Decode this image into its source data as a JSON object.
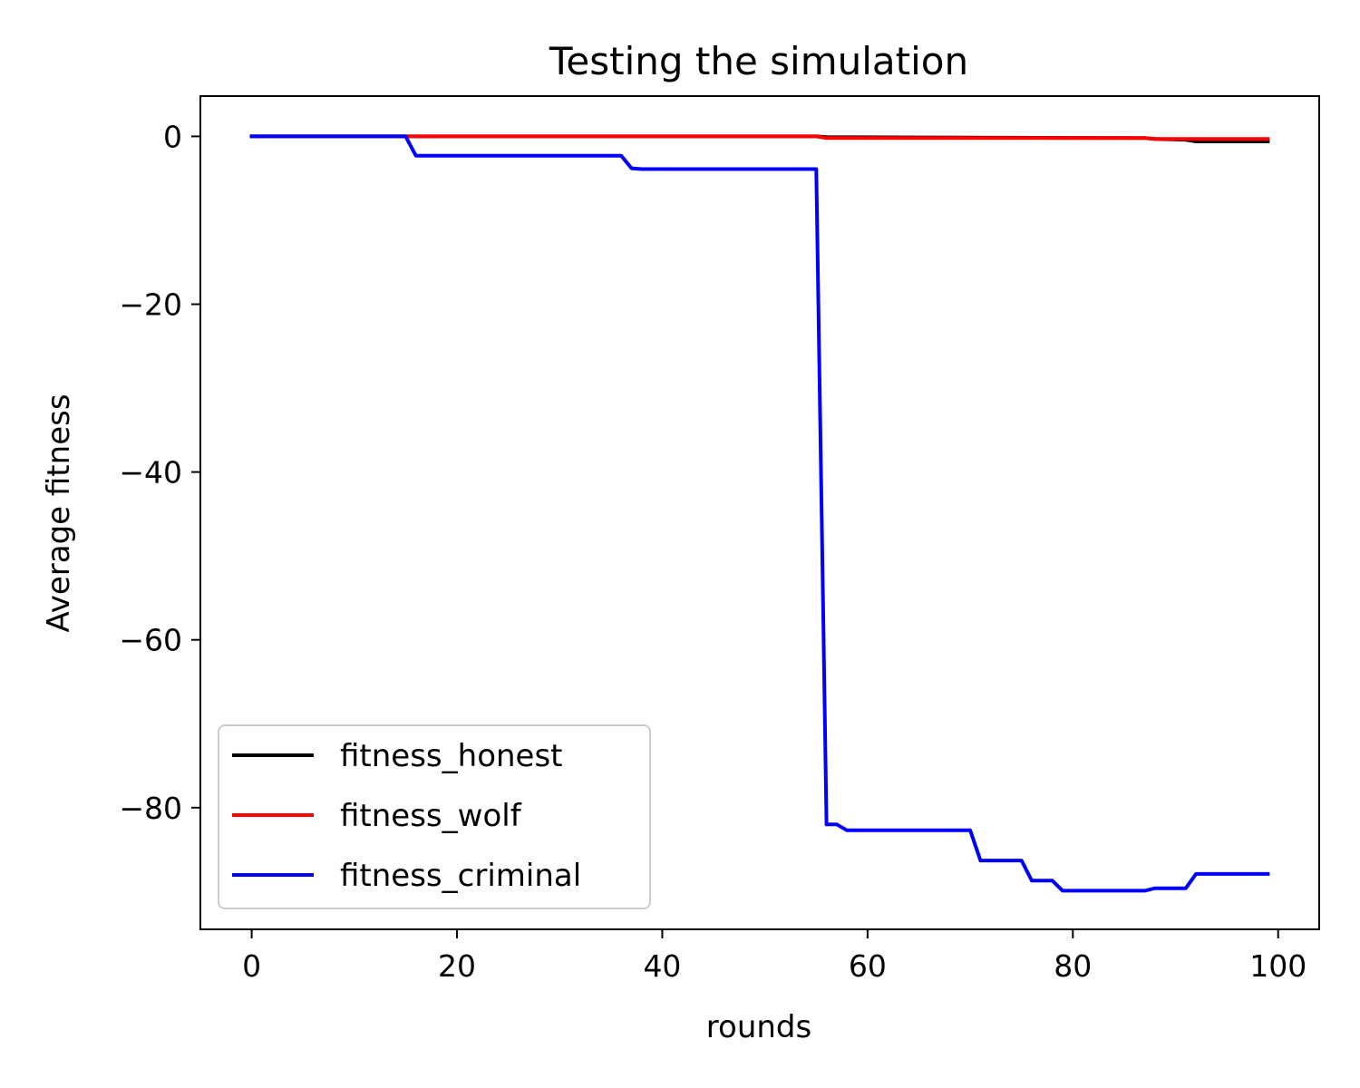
{
  "chart_data": {
    "type": "line",
    "title": "Testing the simulation",
    "xlabel": "rounds",
    "ylabel": "Average fitness",
    "xlim": [
      -5,
      104
    ],
    "ylim": [
      -94.5,
      4.8
    ],
    "xticks": [
      0,
      20,
      40,
      60,
      80,
      100
    ],
    "yticks": [
      0,
      -20,
      -40,
      -60,
      -80
    ],
    "xtick_labels": [
      "0",
      "20",
      "40",
      "60",
      "80",
      "100"
    ],
    "ytick_labels": [
      "0",
      "−20",
      "−40",
      "−60",
      "−80"
    ],
    "grid": false,
    "legend_position": "lower-left",
    "series": [
      {
        "name": "fitness_honest",
        "color": "#000000",
        "points": [
          [
            0,
            0
          ],
          [
            15,
            0
          ],
          [
            55,
            0
          ],
          [
            56,
            -0.1
          ],
          [
            70,
            -0.15
          ],
          [
            87,
            -0.2
          ],
          [
            88,
            -0.3
          ],
          [
            91,
            -0.4
          ],
          [
            92,
            -0.6
          ],
          [
            99,
            -0.6
          ]
        ]
      },
      {
        "name": "fitness_wolf",
        "color": "#ff0000",
        "points": [
          [
            0,
            0
          ],
          [
            15,
            0
          ],
          [
            55,
            0
          ],
          [
            56,
            -0.2
          ],
          [
            87,
            -0.2
          ],
          [
            88,
            -0.3
          ],
          [
            99,
            -0.3
          ]
        ]
      },
      {
        "name": "fitness_criminal",
        "color": "#0000ff",
        "points": [
          [
            0,
            0
          ],
          [
            15,
            0
          ],
          [
            16,
            -2.3
          ],
          [
            36,
            -2.3
          ],
          [
            37,
            -3.8
          ],
          [
            38,
            -3.9
          ],
          [
            55,
            -3.9
          ],
          [
            56,
            -82
          ],
          [
            57,
            -82
          ],
          [
            58,
            -82.7
          ],
          [
            70,
            -82.7
          ],
          [
            71,
            -86.3
          ],
          [
            75,
            -86.3
          ],
          [
            76,
            -88.7
          ],
          [
            78,
            -88.7
          ],
          [
            79,
            -89.9
          ],
          [
            87,
            -89.9
          ],
          [
            88,
            -89.6
          ],
          [
            91,
            -89.6
          ],
          [
            92,
            -87.9
          ],
          [
            99,
            -87.9
          ]
        ]
      }
    ]
  }
}
